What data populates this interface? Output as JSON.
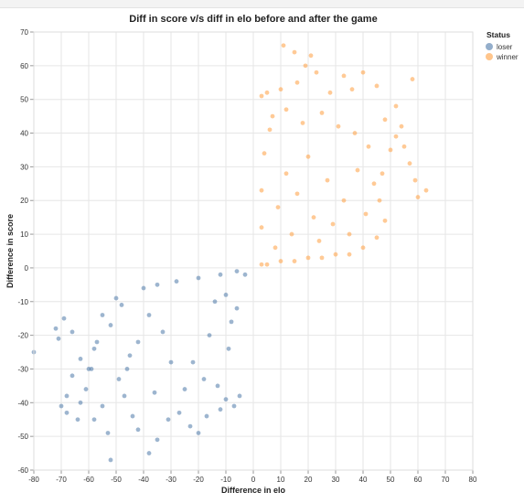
{
  "chart_data": {
    "type": "scatter",
    "title": "Diff in score v/s diff in elo before and after the game",
    "xlabel": "Difference in elo",
    "ylabel": "Difference in score",
    "xlim": [
      -80,
      80
    ],
    "ylim": [
      -60,
      70
    ],
    "xticks": [
      -80,
      -70,
      -60,
      -50,
      -40,
      -30,
      -20,
      -10,
      0,
      10,
      20,
      30,
      40,
      50,
      60,
      70,
      80
    ],
    "yticks": [
      -60,
      -50,
      -40,
      -30,
      -20,
      -10,
      0,
      10,
      20,
      30,
      40,
      50,
      60,
      70
    ],
    "grid": true,
    "legend": {
      "title": "Status",
      "placement": "top-right"
    },
    "series": [
      {
        "name": "loser",
        "color": "#4c78a8",
        "points": [
          [
            -80,
            -25
          ],
          [
            -70,
            -41
          ],
          [
            -68,
            -38
          ],
          [
            -68,
            -43
          ],
          [
            -66,
            -32
          ],
          [
            -64,
            -45
          ],
          [
            -63,
            -40
          ],
          [
            -61,
            -36
          ],
          [
            -59,
            -30
          ],
          [
            -58,
            -45
          ],
          [
            -55,
            -41
          ],
          [
            -53,
            -49
          ],
          [
            -52,
            -57
          ],
          [
            -49,
            -33
          ],
          [
            -47,
            -38
          ],
          [
            -44,
            -44
          ],
          [
            -42,
            -48
          ],
          [
            -38,
            -55
          ],
          [
            -35,
            -51
          ],
          [
            -31,
            -45
          ],
          [
            -27,
            -43
          ],
          [
            -23,
            -47
          ],
          [
            -20,
            -49
          ],
          [
            -17,
            -44
          ],
          [
            -12,
            -42
          ],
          [
            -10,
            -39
          ],
          [
            -7,
            -41
          ],
          [
            -5,
            -38
          ],
          [
            -13,
            -35
          ],
          [
            -55,
            -14
          ],
          [
            -57,
            -22
          ],
          [
            -52,
            -17
          ],
          [
            -48,
            -11
          ],
          [
            -45,
            -26
          ],
          [
            -63,
            -27
          ],
          [
            -66,
            -19
          ],
          [
            -69,
            -15
          ],
          [
            -71,
            -21
          ],
          [
            -72,
            -18
          ],
          [
            -60,
            -30
          ],
          [
            -58,
            -24
          ],
          [
            -50,
            -9
          ],
          [
            -40,
            -6
          ],
          [
            -35,
            -5
          ],
          [
            -28,
            -4
          ],
          [
            -20,
            -3
          ],
          [
            -12,
            -2
          ],
          [
            -6,
            -1
          ],
          [
            -3,
            -2
          ],
          [
            -8,
            -16
          ],
          [
            -9,
            -24
          ],
          [
            -6,
            -12
          ],
          [
            -14,
            -10
          ],
          [
            -18,
            -33
          ],
          [
            -25,
            -36
          ],
          [
            -30,
            -28
          ],
          [
            -33,
            -19
          ],
          [
            -38,
            -14
          ],
          [
            -42,
            -22
          ],
          [
            -46,
            -30
          ],
          [
            -36,
            -37
          ],
          [
            -22,
            -28
          ],
          [
            -16,
            -20
          ],
          [
            -10,
            -8
          ]
        ]
      },
      {
        "name": "winner",
        "color": "#ff9f40",
        "points": [
          [
            11,
            66
          ],
          [
            15,
            64
          ],
          [
            21,
            63
          ],
          [
            19,
            60
          ],
          [
            23,
            58
          ],
          [
            33,
            57
          ],
          [
            40,
            58
          ],
          [
            58,
            56
          ],
          [
            16,
            55
          ],
          [
            10,
            53
          ],
          [
            5,
            52
          ],
          [
            3,
            51
          ],
          [
            28,
            52
          ],
          [
            36,
            53
          ],
          [
            45,
            54
          ],
          [
            52,
            48
          ],
          [
            63,
            23
          ],
          [
            60,
            21
          ],
          [
            59,
            26
          ],
          [
            57,
            31
          ],
          [
            55,
            36
          ],
          [
            54,
            42
          ],
          [
            48,
            44
          ],
          [
            52,
            39
          ],
          [
            50,
            35
          ],
          [
            47,
            28
          ],
          [
            46,
            20
          ],
          [
            48,
            14
          ],
          [
            45,
            9
          ],
          [
            40,
            6
          ],
          [
            35,
            4
          ],
          [
            30,
            4
          ],
          [
            25,
            3
          ],
          [
            20,
            3
          ],
          [
            15,
            2
          ],
          [
            10,
            2
          ],
          [
            5,
            1
          ],
          [
            3,
            1
          ],
          [
            3,
            12
          ],
          [
            3,
            23
          ],
          [
            4,
            34
          ],
          [
            6,
            41
          ],
          [
            7,
            45
          ],
          [
            12,
            47
          ],
          [
            18,
            43
          ],
          [
            25,
            46
          ],
          [
            31,
            42
          ],
          [
            37,
            40
          ],
          [
            42,
            36
          ],
          [
            44,
            25
          ],
          [
            41,
            16
          ],
          [
            35,
            10
          ],
          [
            24,
            8
          ],
          [
            14,
            10
          ],
          [
            9,
            18
          ],
          [
            12,
            28
          ],
          [
            20,
            33
          ],
          [
            27,
            26
          ],
          [
            33,
            20
          ],
          [
            38,
            29
          ],
          [
            16,
            22
          ],
          [
            22,
            15
          ],
          [
            29,
            13
          ],
          [
            8,
            6
          ]
        ]
      }
    ]
  }
}
